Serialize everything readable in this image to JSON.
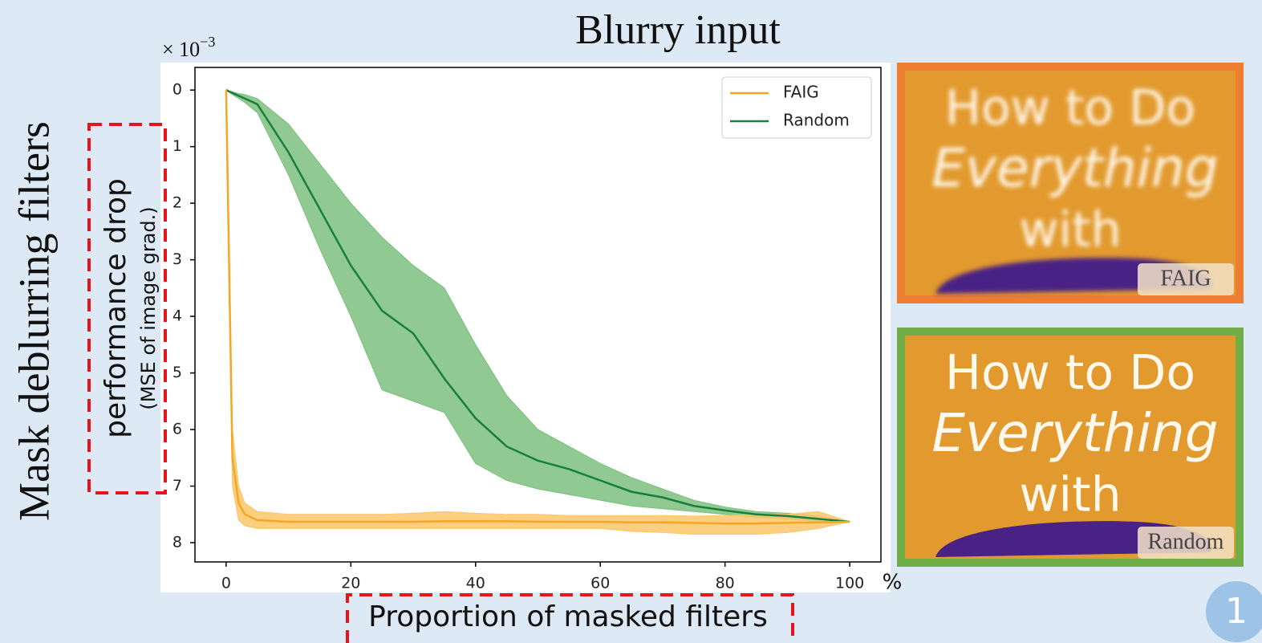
{
  "slide_title": "Blurry input",
  "side_label": "Mask deblurring filters",
  "slide_number": "1",
  "chart_data": {
    "type": "line",
    "y_multiplier": {
      "base": "× 10",
      "exponent": "−3"
    },
    "ylabel": "performance drop",
    "ylabel_note": "(MSE of image grad.)",
    "xlabel": "Proportion of masked filters",
    "x_unit": "%",
    "x": [
      0,
      1,
      2,
      3,
      5,
      10,
      15,
      20,
      25,
      30,
      35,
      40,
      45,
      50,
      55,
      60,
      65,
      70,
      75,
      80,
      85,
      90,
      95,
      100
    ],
    "series": [
      {
        "name": "FAIG",
        "color": "#f5a623",
        "band_color": "#fbc56a",
        "values": [
          0,
          6.5,
          7.3,
          7.5,
          7.6,
          7.63,
          7.63,
          7.63,
          7.63,
          7.63,
          7.62,
          7.62,
          7.62,
          7.63,
          7.63,
          7.63,
          7.64,
          7.64,
          7.65,
          7.66,
          7.66,
          7.65,
          7.64,
          7.63
        ],
        "lower": [
          0,
          6.0,
          7.0,
          7.3,
          7.45,
          7.5,
          7.5,
          7.5,
          7.5,
          7.48,
          7.45,
          7.48,
          7.5,
          7.5,
          7.52,
          7.52,
          7.52,
          7.52,
          7.53,
          7.52,
          7.5,
          7.5,
          7.45,
          7.63
        ],
        "upper": [
          0,
          7.0,
          7.6,
          7.7,
          7.75,
          7.75,
          7.75,
          7.75,
          7.75,
          7.75,
          7.75,
          7.75,
          7.75,
          7.75,
          7.75,
          7.75,
          7.8,
          7.82,
          7.85,
          7.85,
          7.85,
          7.82,
          7.75,
          7.63
        ]
      },
      {
        "name": "Random",
        "color": "#17803d",
        "band_color": "#7cc07f",
        "values": [
          0,
          0.05,
          0.1,
          0.15,
          0.25,
          1.1,
          2.1,
          3.1,
          3.9,
          4.3,
          5.1,
          5.8,
          6.3,
          6.55,
          6.7,
          6.9,
          7.1,
          7.2,
          7.35,
          7.43,
          7.5,
          7.53,
          7.58,
          7.63
        ],
        "lower": [
          0,
          0.03,
          0.06,
          0.08,
          0.15,
          0.6,
          1.3,
          2.0,
          2.6,
          3.1,
          3.5,
          4.5,
          5.4,
          6.0,
          6.3,
          6.6,
          6.85,
          7.05,
          7.25,
          7.37,
          7.45,
          7.48,
          7.53,
          7.63
        ],
        "upper": [
          0,
          0.08,
          0.15,
          0.22,
          0.4,
          1.5,
          2.8,
          4.0,
          5.3,
          5.5,
          5.7,
          6.6,
          6.9,
          7.05,
          7.15,
          7.25,
          7.35,
          7.4,
          7.45,
          7.5,
          7.55,
          7.58,
          7.63,
          7.63
        ]
      }
    ],
    "xlim": [
      -5,
      105
    ],
    "ylim": [
      8.34,
      -0.4
    ],
    "xticks": [
      0,
      20,
      40,
      60,
      80,
      100
    ],
    "yticks": [
      0,
      1,
      2,
      3,
      4,
      5,
      6,
      7,
      8
    ],
    "legend": "upper right"
  },
  "panels": [
    {
      "lines": [
        "How to Do",
        "Everything",
        "with"
      ],
      "tag": "FAIG",
      "border": "#ed7d31"
    },
    {
      "lines": [
        "How to Do",
        "Everything",
        "with"
      ],
      "tag": "Random",
      "border": "#70ad47"
    }
  ]
}
